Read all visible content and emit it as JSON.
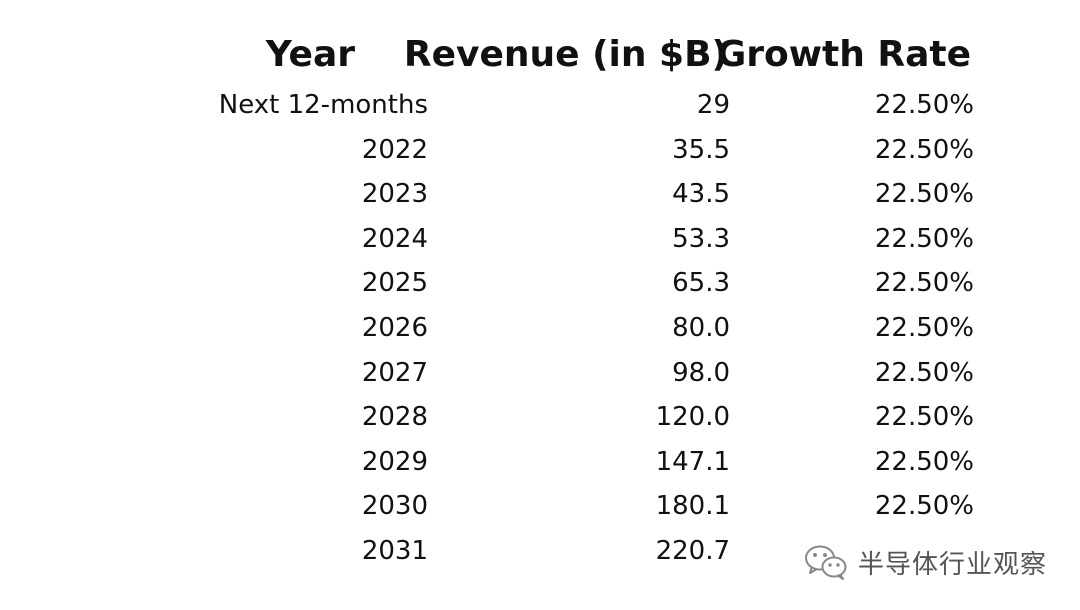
{
  "table": {
    "headers": {
      "year": "Year",
      "revenue": "Revenue (in $B)",
      "growth": "Growth Rate"
    },
    "rows": [
      {
        "year": "Next 12-months",
        "revenue": "29",
        "growth": "22.50%"
      },
      {
        "year": "2022",
        "revenue": "35.5",
        "growth": "22.50%"
      },
      {
        "year": "2023",
        "revenue": "43.5",
        "growth": "22.50%"
      },
      {
        "year": "2024",
        "revenue": "53.3",
        "growth": "22.50%"
      },
      {
        "year": "2025",
        "revenue": "65.3",
        "growth": "22.50%"
      },
      {
        "year": "2026",
        "revenue": "80.0",
        "growth": "22.50%"
      },
      {
        "year": "2027",
        "revenue": "98.0",
        "growth": "22.50%"
      },
      {
        "year": "2028",
        "revenue": "120.0",
        "growth": "22.50%"
      },
      {
        "year": "2029",
        "revenue": "147.1",
        "growth": "22.50%"
      },
      {
        "year": "2030",
        "revenue": "180.1",
        "growth": "22.50%"
      },
      {
        "year": "2031",
        "revenue": "220.7",
        "growth": ""
      }
    ]
  },
  "watermark": {
    "icon": "wechat-icon",
    "text": "半导体行业观察"
  }
}
